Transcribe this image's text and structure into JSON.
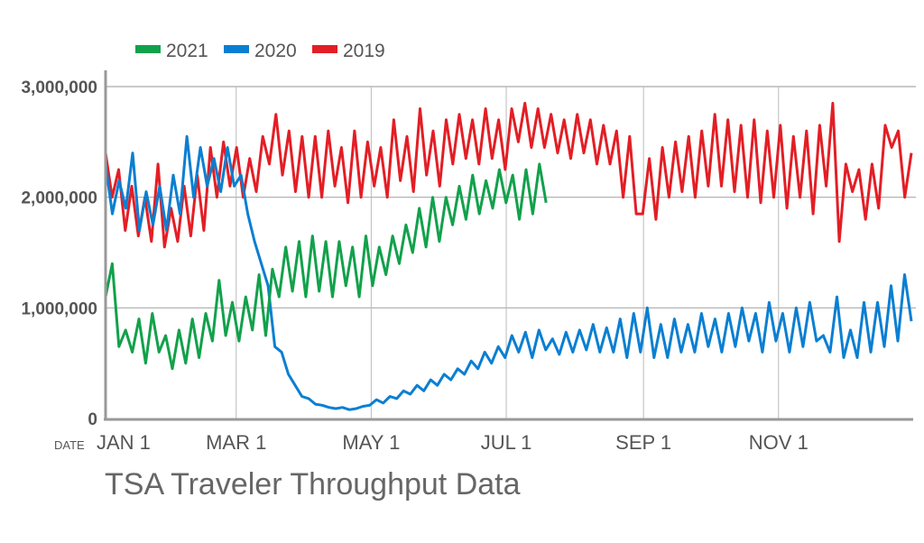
{
  "chart_data": {
    "type": "line",
    "title": "TSA Traveler Throughput Data",
    "xlabel": "DATE",
    "ylabel": "",
    "value_scale": 1000000,
    "ylim": [
      0,
      3000000
    ],
    "xlim_day_of_year": [
      0,
      364
    ],
    "yticks": [
      {
        "value": 0,
        "label": "0"
      },
      {
        "value": 1000000,
        "label": "1,000,000"
      },
      {
        "value": 2000000,
        "label": "2,000,000"
      },
      {
        "value": 3000000,
        "label": "3,000,000"
      }
    ],
    "xticks": [
      {
        "day": 0,
        "label": "JAN 1"
      },
      {
        "day": 59,
        "label": "MAR 1"
      },
      {
        "day": 120,
        "label": "MAY 1"
      },
      {
        "day": 181,
        "label": "JUL 1"
      },
      {
        "day": 243,
        "label": "SEP 1"
      },
      {
        "day": 304,
        "label": "NOV 1"
      }
    ],
    "grid": true,
    "legend_position": "top-left",
    "series": [
      {
        "name": "2021",
        "color": "#12a14b",
        "start_day": 0,
        "end_day": 199,
        "values_millions": [
          1.1,
          1.4,
          0.65,
          0.8,
          0.6,
          0.9,
          0.5,
          0.95,
          0.6,
          0.75,
          0.45,
          0.8,
          0.5,
          0.9,
          0.55,
          0.95,
          0.7,
          1.25,
          0.75,
          1.05,
          0.7,
          1.1,
          0.8,
          1.3,
          0.75,
          1.35,
          1.1,
          1.55,
          1.15,
          1.6,
          1.1,
          1.65,
          1.15,
          1.6,
          1.1,
          1.6,
          1.2,
          1.55,
          1.1,
          1.65,
          1.2,
          1.55,
          1.3,
          1.65,
          1.4,
          1.75,
          1.5,
          1.9,
          1.55,
          2.0,
          1.6,
          2.0,
          1.75,
          2.1,
          1.8,
          2.2,
          1.85,
          2.15,
          1.9,
          2.25,
          1.95,
          2.2,
          1.8,
          2.25,
          1.85,
          2.3,
          1.95
        ]
      },
      {
        "name": "2020",
        "color": "#0a7fd2",
        "start_day": 0,
        "end_day": 364,
        "values_millions": [
          2.3,
          1.85,
          2.15,
          1.9,
          2.4,
          1.7,
          2.05,
          1.75,
          2.1,
          1.7,
          2.2,
          1.85,
          2.55,
          2.0,
          2.45,
          2.1,
          2.35,
          2.05,
          2.45,
          2.1,
          2.2,
          1.85,
          1.6,
          1.4,
          1.2,
          0.65,
          0.6,
          0.4,
          0.3,
          0.2,
          0.18,
          0.13,
          0.12,
          0.1,
          0.09,
          0.1,
          0.08,
          0.09,
          0.11,
          0.12,
          0.17,
          0.14,
          0.2,
          0.18,
          0.25,
          0.22,
          0.3,
          0.25,
          0.35,
          0.3,
          0.4,
          0.35,
          0.45,
          0.4,
          0.52,
          0.45,
          0.6,
          0.5,
          0.65,
          0.55,
          0.75,
          0.6,
          0.78,
          0.55,
          0.8,
          0.62,
          0.72,
          0.58,
          0.78,
          0.6,
          0.8,
          0.62,
          0.85,
          0.6,
          0.82,
          0.6,
          0.9,
          0.55,
          0.95,
          0.6,
          1.0,
          0.55,
          0.85,
          0.55,
          0.9,
          0.6,
          0.85,
          0.6,
          0.95,
          0.65,
          0.9,
          0.6,
          0.95,
          0.65,
          1.0,
          0.7,
          0.95,
          0.6,
          1.05,
          0.7,
          0.95,
          0.6,
          1.0,
          0.65,
          1.05,
          0.7,
          0.75,
          0.6,
          1.1,
          0.55,
          0.8,
          0.55,
          1.05,
          0.6,
          1.05,
          0.65,
          1.2,
          0.7,
          1.3,
          0.88
        ]
      },
      {
        "name": "2019",
        "color": "#e31e25",
        "start_day": 0,
        "end_day": 364,
        "values_millions": [
          2.4,
          2.0,
          2.25,
          1.7,
          2.1,
          1.65,
          2.0,
          1.6,
          2.3,
          1.55,
          1.9,
          1.6,
          2.1,
          1.65,
          2.2,
          1.7,
          2.45,
          2.0,
          2.5,
          2.1,
          2.45,
          2.0,
          2.35,
          2.05,
          2.55,
          2.3,
          2.75,
          2.2,
          2.6,
          2.05,
          2.55,
          2.0,
          2.55,
          2.0,
          2.6,
          2.1,
          2.45,
          1.95,
          2.6,
          2.0,
          2.5,
          2.1,
          2.45,
          2.0,
          2.7,
          2.15,
          2.55,
          2.05,
          2.8,
          2.2,
          2.6,
          2.1,
          2.7,
          2.3,
          2.75,
          2.35,
          2.7,
          2.3,
          2.8,
          2.35,
          2.7,
          2.25,
          2.8,
          2.5,
          2.85,
          2.45,
          2.8,
          2.45,
          2.75,
          2.4,
          2.7,
          2.35,
          2.75,
          2.4,
          2.7,
          2.3,
          2.65,
          2.3,
          2.6,
          2.0,
          2.55,
          1.85,
          1.85,
          2.35,
          1.8,
          2.45,
          2.0,
          2.5,
          2.05,
          2.55,
          2.0,
          2.6,
          2.1,
          2.75,
          2.1,
          2.7,
          2.05,
          2.65,
          2.0,
          2.7,
          1.95,
          2.6,
          2.0,
          2.65,
          1.9,
          2.55,
          2.0,
          2.6,
          1.85,
          2.65,
          2.1,
          2.85,
          1.6,
          2.3,
          2.05,
          2.25,
          1.8,
          2.3,
          1.9,
          2.65,
          2.45,
          2.6,
          2.0,
          2.4
        ]
      }
    ]
  }
}
